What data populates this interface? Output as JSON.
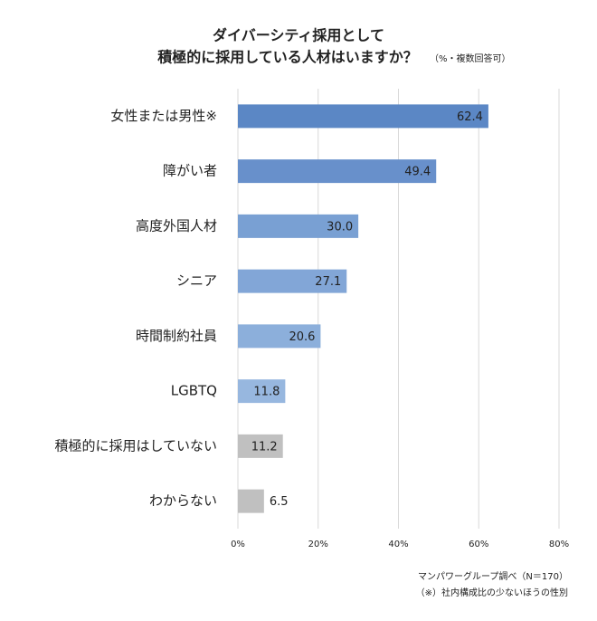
{
  "chart_data": {
    "type": "barh",
    "title": "ダイバーシティ採用として",
    "subtitle": "積極的に採用している人材はいますか？",
    "subtitle_note": "（%・複数回答可）",
    "categories": [
      "女性または男性※",
      "障がい者",
      "高度外国人材",
      "シニア",
      "時間制約社員",
      "LGBTQ",
      "積極的に採用はしていない",
      "わからない"
    ],
    "values": [
      62.4,
      49.4,
      30.0,
      27.1,
      20.6,
      11.8,
      11.2,
      6.5
    ],
    "value_labels": [
      "62.4",
      "49.4",
      "30.0",
      "27.1",
      "20.6",
      "11.8",
      "11.2",
      "6.5"
    ],
    "colors": [
      "#5b87c5",
      "#6890cb",
      "#79a0d3",
      "#82a6d7",
      "#8cafdb",
      "#97b7df",
      "#c0c0c0",
      "#c0c0c0"
    ],
    "xlim": [
      0,
      80
    ],
    "xticks": [
      {
        "value": 0,
        "label": "0%"
      },
      {
        "value": 20,
        "label": "20%"
      },
      {
        "value": 40,
        "label": "40%"
      },
      {
        "value": 60,
        "label": "60%"
      },
      {
        "value": 80,
        "label": "80%"
      }
    ],
    "grid": true,
    "source": "マンパワーグループ調べ（N＝170）",
    "footnote": "（※）社内構成比の少ないほうの性別"
  }
}
